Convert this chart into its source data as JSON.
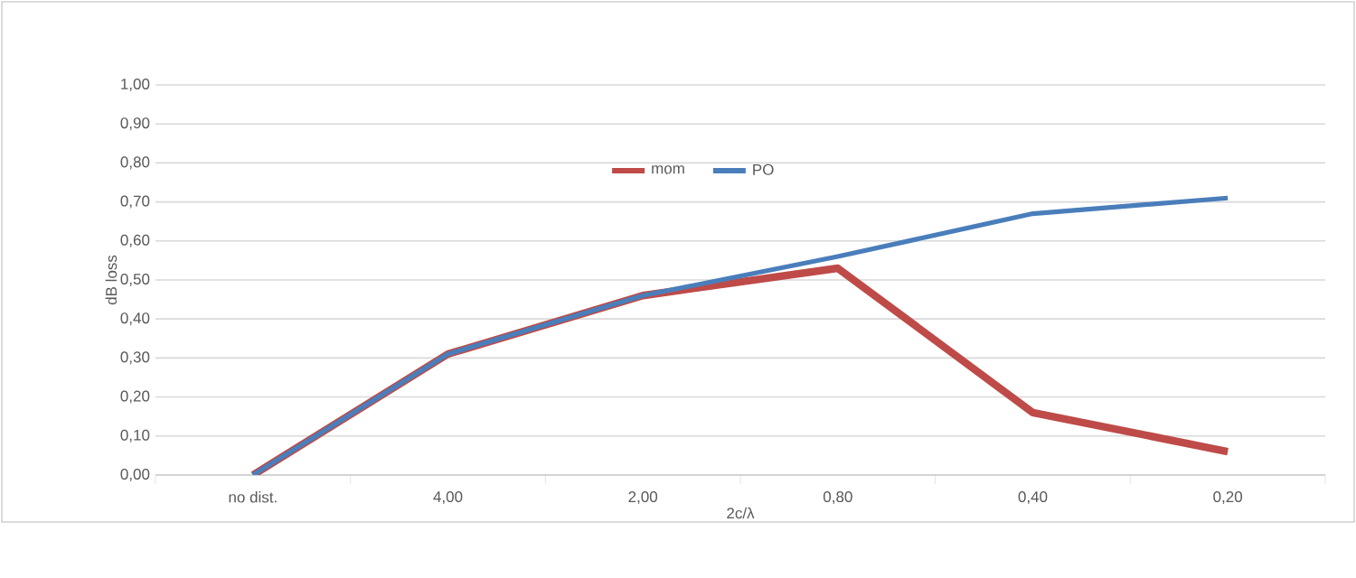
{
  "chart_data": {
    "type": "line",
    "xlabel": "2c/λ",
    "ylabel": "dB loss",
    "categories": [
      "no dist.",
      "4,00",
      "2,00",
      "0,80",
      "0,40",
      "0,20"
    ],
    "series": [
      {
        "name": "mom",
        "color": "#be4b48",
        "values": [
          0,
          0.31,
          0.46,
          0.53,
          0.16,
          0.06
        ]
      },
      {
        "name": "PO",
        "color": "#4a7ebb",
        "values": [
          0,
          0.31,
          0.46,
          0.56,
          0.67,
          0.71
        ]
      }
    ],
    "ylim": [
      0,
      1
    ],
    "yticks": [
      {
        "value": 0,
        "label": "0,00"
      },
      {
        "value": 0.1,
        "label": "0,10"
      },
      {
        "value": 0.2,
        "label": "0,20"
      },
      {
        "value": 0.3,
        "label": "0,30"
      },
      {
        "value": 0.4,
        "label": "0,40"
      },
      {
        "value": 0.5,
        "label": "0,50"
      },
      {
        "value": 0.6,
        "label": "0,60"
      },
      {
        "value": 0.7,
        "label": "0,70"
      },
      {
        "value": 0.8,
        "label": "0,80"
      },
      {
        "value": 0.9,
        "label": "0,90"
      },
      {
        "value": 1,
        "label": "1,00"
      }
    ],
    "grid": "y",
    "legend": "top",
    "marker": "none",
    "line_style": "solid"
  }
}
